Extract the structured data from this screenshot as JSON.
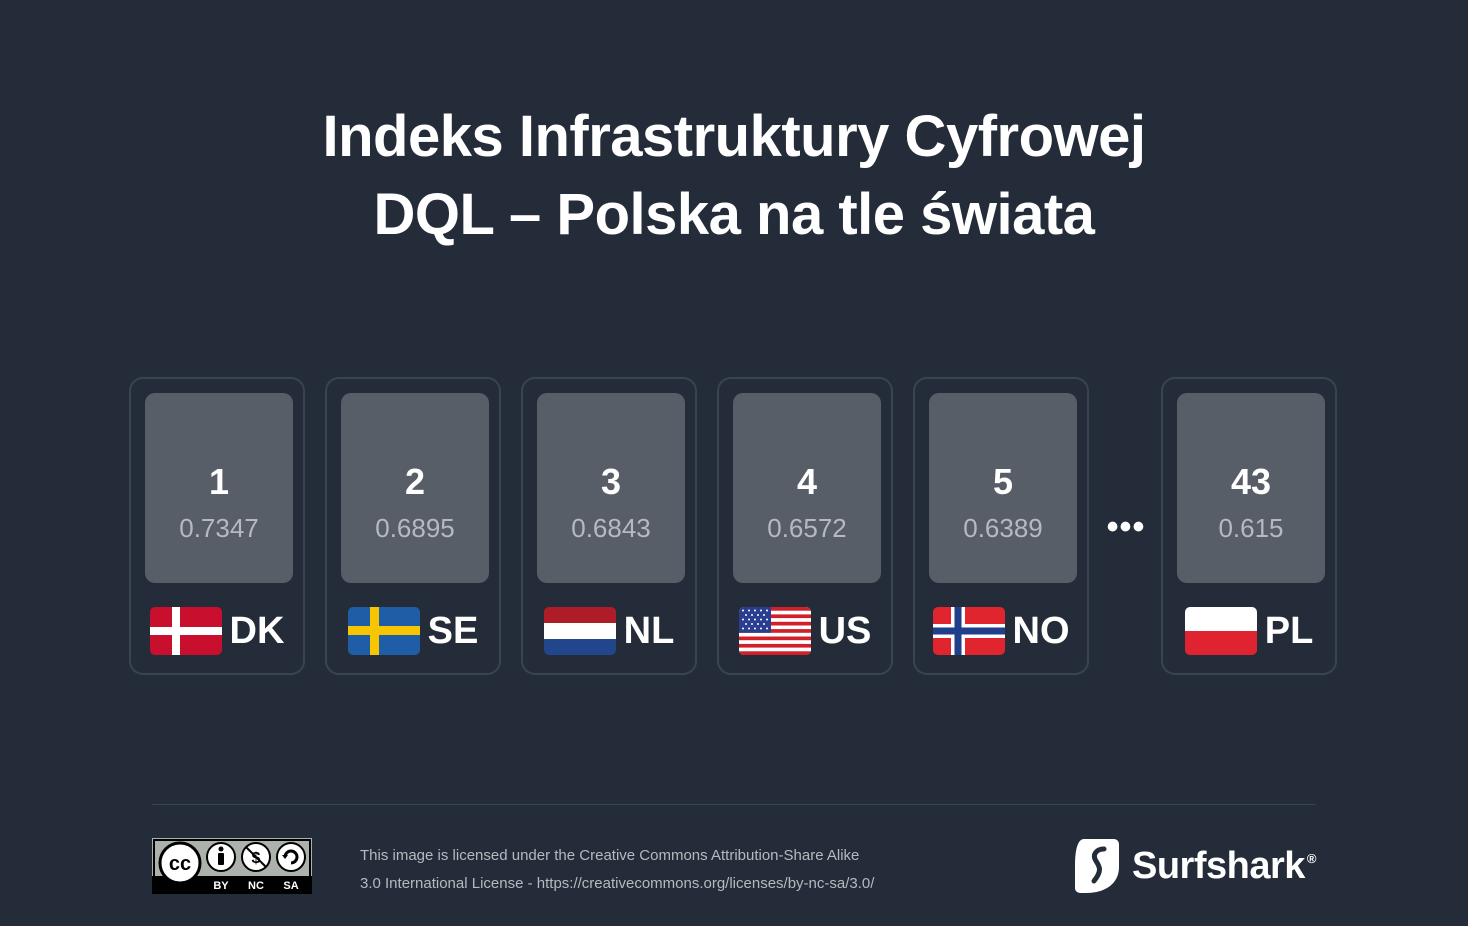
{
  "title": {
    "line1": "Indeks Infrastruktury Cyfrowej",
    "line2": "DQL – Polska na tle świata"
  },
  "countries": [
    {
      "rank": "1",
      "score": "0.7347",
      "code": "DK",
      "flag": "denmark-flag"
    },
    {
      "rank": "2",
      "score": "0.6895",
      "code": "SE",
      "flag": "sweden-flag"
    },
    {
      "rank": "3",
      "score": "0.6843",
      "code": "NL",
      "flag": "netherlands-flag"
    },
    {
      "rank": "4",
      "score": "0.6572",
      "code": "US",
      "flag": "usa-flag"
    },
    {
      "rank": "5",
      "score": "0.6389",
      "code": "NO",
      "flag": "norway-flag"
    },
    {
      "rank": "43",
      "score": "0.615",
      "code": "PL",
      "flag": "poland-flag"
    }
  ],
  "ellipsis": "•••",
  "footer": {
    "cc_labels": {
      "by": "BY",
      "nc": "NC",
      "sa": "SA",
      "cc": "cc"
    },
    "license_line1": "This image is licensed under the Creative Commons Attribution-Share Alike",
    "license_line2": "3.0 International License - https://creativecommons.org/licenses/by-nc-sa/3.0/",
    "brand": "Surfshark",
    "brand_reg": "®"
  },
  "colors": {
    "background": "#232c38",
    "card_border": "#3a4451",
    "rank_box": "#575e67",
    "score_text": "#b5bac0"
  }
}
